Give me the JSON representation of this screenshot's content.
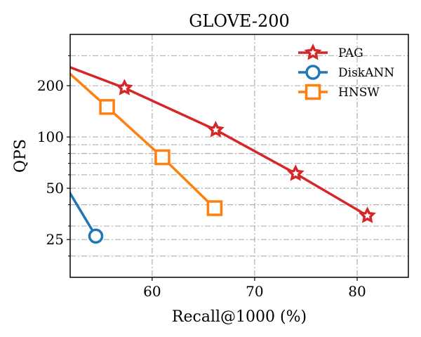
{
  "chart_data": {
    "type": "line",
    "title": "GLOVE-200",
    "xlabel": "Recall@1000 (%)",
    "ylabel": "QPS",
    "yscale": "log",
    "xlim": [
      52,
      85
    ],
    "ylim": [
      15,
      400
    ],
    "grid": true,
    "legend_position": "top-right",
    "x_ticks": [
      60,
      70,
      80
    ],
    "x_tick_labels": [
      "60",
      "70",
      "80"
    ],
    "y_ticks": [
      25,
      50,
      100,
      200
    ],
    "y_tick_labels": [
      "25",
      "50",
      "100",
      "200"
    ],
    "y_minor_ticks": [
      20,
      30,
      40,
      60,
      70,
      80,
      90,
      300
    ],
    "series": [
      {
        "name": "PAG",
        "color": "#d62728",
        "marker": "star",
        "x": [
          50,
          57.3,
          66.2,
          74.0,
          81.0
        ],
        "y": [
          285,
          194,
          110,
          61,
          34.5
        ]
      },
      {
        "name": "DiskANN",
        "color": "#1f77b4",
        "marker": "circle",
        "x": [
          50,
          54.5
        ],
        "y": [
          74,
          26.2
        ]
      },
      {
        "name": "HNSW",
        "color": "#ff7f0e",
        "marker": "square",
        "x": [
          50,
          55.6,
          61.0,
          66.1
        ],
        "y": [
          300,
          150,
          76,
          38.2
        ]
      }
    ]
  }
}
